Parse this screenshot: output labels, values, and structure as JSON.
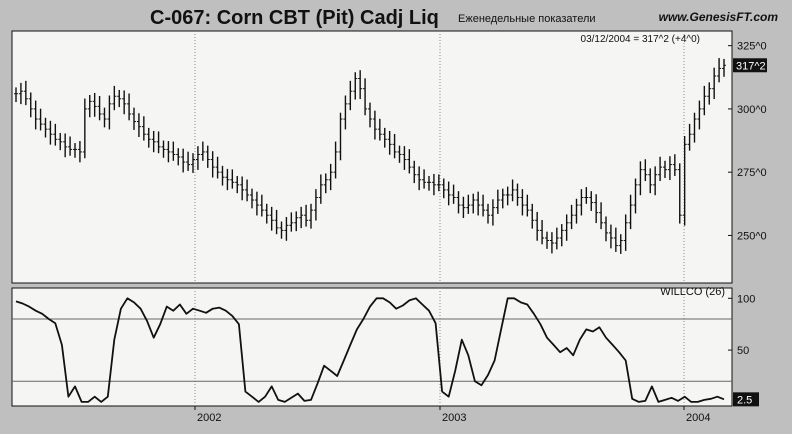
{
  "header": {
    "title": "C-067: Corn CBT (Pit) Cadj Liq",
    "subtitle_overlay": "Еженедельные показатели",
    "website": "www.GenesisFT.com",
    "last_quote": "03/12/2004 = 317^2 (+4^0)"
  },
  "colors": {
    "background": "#bfbfbf",
    "panel": "#f5f5f3",
    "ink": "#111111",
    "grid": "#8a8a8a",
    "price_tag": "#111111"
  },
  "chart_data": [
    {
      "type": "ohlc",
      "title": "C-067: Corn CBT (Pit) Cadj Liq",
      "ylim": [
        232,
        330
      ],
      "y_ticks": [
        "325^0",
        "300^0",
        "275^0",
        "250^0"
      ],
      "y_tick_values": [
        325,
        300,
        275,
        250
      ],
      "x_ticks": [
        "2002",
        "2003",
        "2004"
      ],
      "last_price_label": "317^2",
      "last_price": 317.25,
      "grid": "dotted vertical year lines",
      "x_period": "weekly, 2001 to 2004",
      "closes": [
        306,
        307,
        304,
        300,
        296,
        294,
        292,
        290,
        288,
        287,
        285,
        284,
        284,
        283,
        300,
        303,
        301,
        298,
        296,
        302,
        305,
        304,
        302,
        298,
        295,
        293,
        290,
        288,
        287,
        285,
        284,
        283,
        282,
        281,
        279,
        278,
        280,
        282,
        283,
        280,
        277,
        275,
        273,
        272,
        271,
        270,
        268,
        266,
        264,
        262,
        260,
        258,
        256,
        253,
        252,
        254,
        255,
        257,
        258,
        256,
        260,
        265,
        270,
        272,
        275,
        283,
        296,
        302,
        307,
        312,
        308,
        300,
        296,
        292,
        290,
        288,
        286,
        283,
        282,
        280,
        277,
        274,
        272,
        271,
        271,
        270,
        270,
        268,
        266,
        265,
        262,
        261,
        262,
        264,
        262,
        260,
        258,
        261,
        264,
        266,
        266,
        268,
        265,
        262,
        260,
        256,
        252,
        249,
        248,
        247,
        249,
        252,
        255,
        258,
        262,
        265,
        265,
        263,
        259,
        255,
        251,
        249,
        246,
        248,
        255,
        262,
        270,
        276,
        274,
        270,
        274,
        277,
        276,
        278,
        276,
        258,
        286,
        290,
        296,
        300,
        305,
        308,
        313,
        316,
        317.25
      ]
    },
    {
      "type": "line",
      "title": "WILLCO (26)",
      "ylim": [
        -2,
        108
      ],
      "y_ticks": [
        "100",
        "50"
      ],
      "y_tick_values": [
        100,
        50
      ],
      "reference_lines": [
        80,
        20
      ],
      "last_value_label": "2.5",
      "values": [
        97,
        95,
        92,
        88,
        85,
        80,
        76,
        55,
        5,
        15,
        0,
        0,
        5,
        0,
        5,
        60,
        90,
        100,
        96,
        90,
        78,
        62,
        75,
        92,
        88,
        94,
        85,
        90,
        88,
        86,
        90,
        91,
        88,
        83,
        75,
        10,
        5,
        0,
        5,
        15,
        2,
        0,
        4,
        8,
        1,
        2,
        18,
        35,
        30,
        25,
        40,
        55,
        70,
        80,
        92,
        100,
        100,
        96,
        90,
        93,
        98,
        100,
        94,
        88,
        76,
        10,
        5,
        30,
        60,
        45,
        20,
        16,
        26,
        40,
        70,
        100,
        100,
        96,
        94,
        85,
        75,
        62,
        55,
        48,
        52,
        45,
        60,
        70,
        68,
        72,
        62,
        55,
        48,
        40,
        3,
        0,
        1,
        15,
        0,
        2,
        4,
        1,
        5,
        0,
        0,
        2,
        3,
        5,
        2.5
      ]
    }
  ]
}
